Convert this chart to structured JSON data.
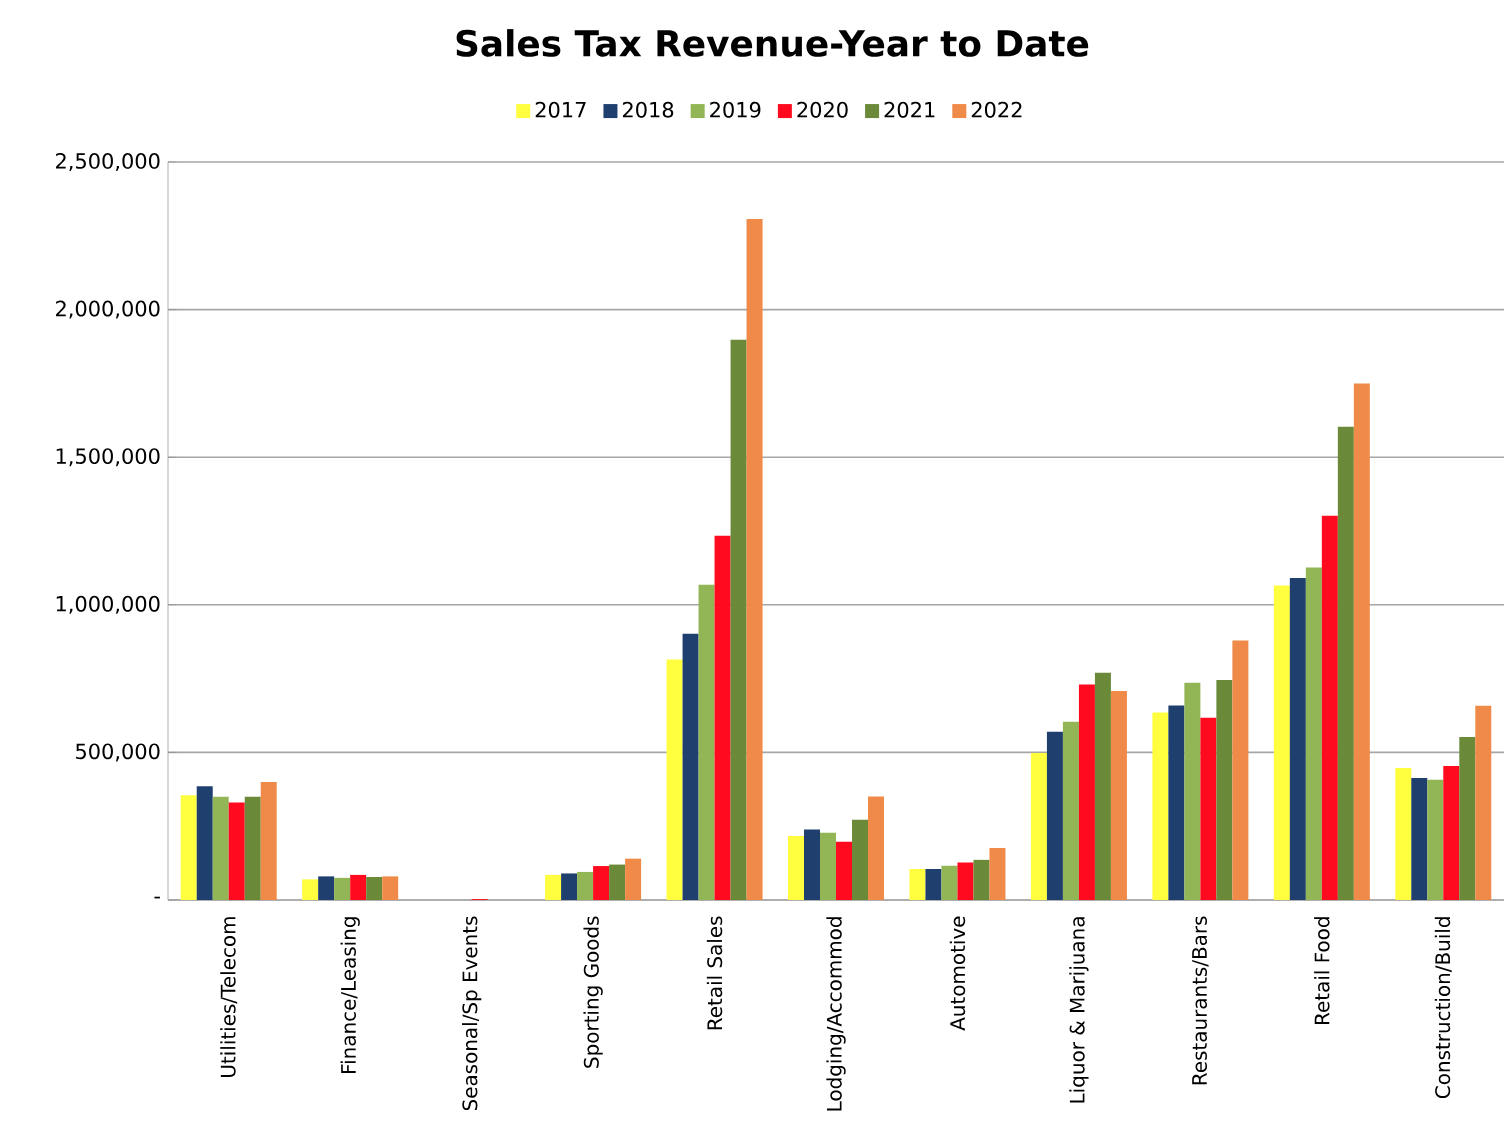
{
  "chart_data": {
    "type": "bar",
    "title": "Sales Tax Revenue-Year to Date",
    "categories": [
      "Utilities/Telecom",
      "Finance/Leasing",
      "Seasonal/Sp Events",
      "Sporting Goods",
      "Retail Sales",
      "Lodging/Accommod",
      "Automotive",
      "Liquor & Marijuana",
      "Restaurants/Bars",
      "Retail Food",
      "Construction/Build"
    ],
    "series": [
      {
        "name": "2017",
        "color": "#ffff40",
        "values": [
          355000,
          70000,
          null,
          85000,
          815000,
          217000,
          105000,
          498000,
          635000,
          1065000,
          447000
        ]
      },
      {
        "name": "2018",
        "color": "#1f3f6e",
        "values": [
          385000,
          80000,
          null,
          90000,
          902000,
          239000,
          105000,
          570000,
          659000,
          1091000,
          413000
        ]
      },
      {
        "name": "2019",
        "color": "#92b556",
        "values": [
          350000,
          75000,
          null,
          95000,
          1068000,
          228000,
          116000,
          604000,
          736000,
          1126000,
          407000
        ]
      },
      {
        "name": "2020",
        "color": "#ff0a1e",
        "values": [
          330000,
          85000,
          3000,
          115000,
          1234000,
          197000,
          127000,
          730000,
          617000,
          1302000,
          454000
        ]
      },
      {
        "name": "2021",
        "color": "#6a8a3a",
        "values": [
          350000,
          78000,
          null,
          120000,
          1898000,
          272000,
          136000,
          770000,
          745000,
          1603000,
          552000
        ]
      },
      {
        "name": "2022",
        "color": "#f08a48",
        "values": [
          400000,
          80000,
          null,
          140000,
          2307000,
          351000,
          176000,
          708000,
          879000,
          1750000,
          658000
        ]
      }
    ],
    "ylim": [
      0,
      2500000
    ],
    "yticks": [
      {
        "value": 0,
        "label": "-"
      },
      {
        "value": 500000,
        "label": "500,000"
      },
      {
        "value": 1000000,
        "label": "1,000,000"
      },
      {
        "value": 1500000,
        "label": "1,500,000"
      },
      {
        "value": 2000000,
        "label": "2,000,000"
      },
      {
        "value": 2500000,
        "label": "2,500,000"
      }
    ],
    "grid": "y",
    "legend": "top"
  }
}
